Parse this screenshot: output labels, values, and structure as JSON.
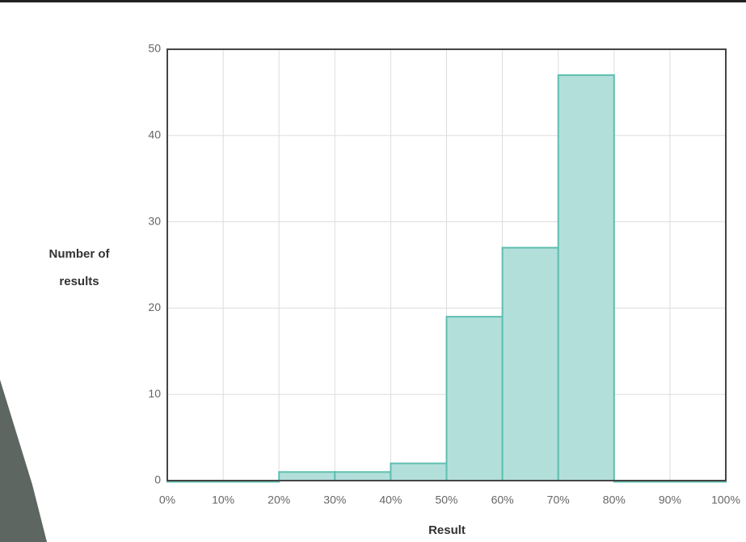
{
  "chart_data": {
    "type": "histogram",
    "x_label": "Result",
    "y_label": "Number of results",
    "bins": [
      0,
      10,
      20,
      30,
      40,
      50,
      60,
      70,
      80,
      90,
      100
    ],
    "values": [
      0,
      0,
      1,
      1,
      2,
      19,
      27,
      47,
      0,
      0
    ],
    "color": "#b3dfdb",
    "edge_color": "#5fbfb0",
    "xlim": [
      0,
      100
    ],
    "xticks": [
      {
        "value": 0,
        "label": "0%"
      },
      {
        "value": 10,
        "label": "10%"
      },
      {
        "value": 20,
        "label": "20%"
      },
      {
        "value": 30,
        "label": "30%"
      },
      {
        "value": 40,
        "label": "40%"
      },
      {
        "value": 50,
        "label": "50%"
      },
      {
        "value": 60,
        "label": "60%"
      },
      {
        "value": 70,
        "label": "70%"
      },
      {
        "value": 80,
        "label": "80%"
      },
      {
        "value": 90,
        "label": "90%"
      },
      {
        "value": 100,
        "label": "100%"
      }
    ],
    "ylim": [
      0,
      50
    ],
    "yticks": [
      0,
      10,
      20,
      30,
      40,
      50
    ],
    "grid": true
  }
}
